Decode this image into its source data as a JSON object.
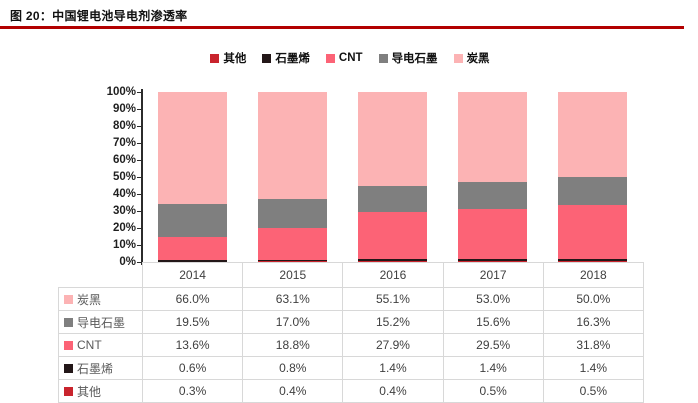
{
  "figure": {
    "title": "图 20：中国锂电池导电剂渗透率",
    "accent_color": "#b20000"
  },
  "chart_data": {
    "type": "bar",
    "stacked": true,
    "percent_stacked": true,
    "title": "中国锂电池导电剂渗透率",
    "categories": [
      "2014",
      "2015",
      "2016",
      "2017",
      "2018"
    ],
    "series": [
      {
        "name": "其他",
        "color": "#c9242d",
        "values": [
          0.3,
          0.4,
          0.4,
          0.5,
          0.5
        ]
      },
      {
        "name": "石墨烯",
        "color": "#231718",
        "values": [
          0.6,
          0.8,
          1.4,
          1.4,
          1.4
        ]
      },
      {
        "name": "CNT",
        "color": "#fc6376",
        "values": [
          13.6,
          18.8,
          27.9,
          29.5,
          31.8
        ]
      },
      {
        "name": "导电石墨",
        "color": "#7f7f7f",
        "values": [
          19.5,
          17.0,
          15.2,
          15.6,
          16.3
        ]
      },
      {
        "name": "炭黑",
        "color": "#fcb3b4",
        "values": [
          66.0,
          63.1,
          55.1,
          53.0,
          50.0
        ]
      }
    ],
    "legend": {
      "position": "top",
      "order": [
        "其他",
        "石墨烯",
        "CNT",
        "导电石墨",
        "炭黑"
      ]
    },
    "y_axis": {
      "min": 0,
      "max": 100,
      "step": 10,
      "grid": false,
      "tick_labels": [
        "0%",
        "10%",
        "20%",
        "30%",
        "40%",
        "50%",
        "60%",
        "70%",
        "80%",
        "90%",
        "100%"
      ]
    },
    "table": {
      "row_order": [
        "炭黑",
        "导电石墨",
        "CNT",
        "石墨烯",
        "其他"
      ],
      "value_suffix": "%",
      "decimals": 1
    }
  }
}
